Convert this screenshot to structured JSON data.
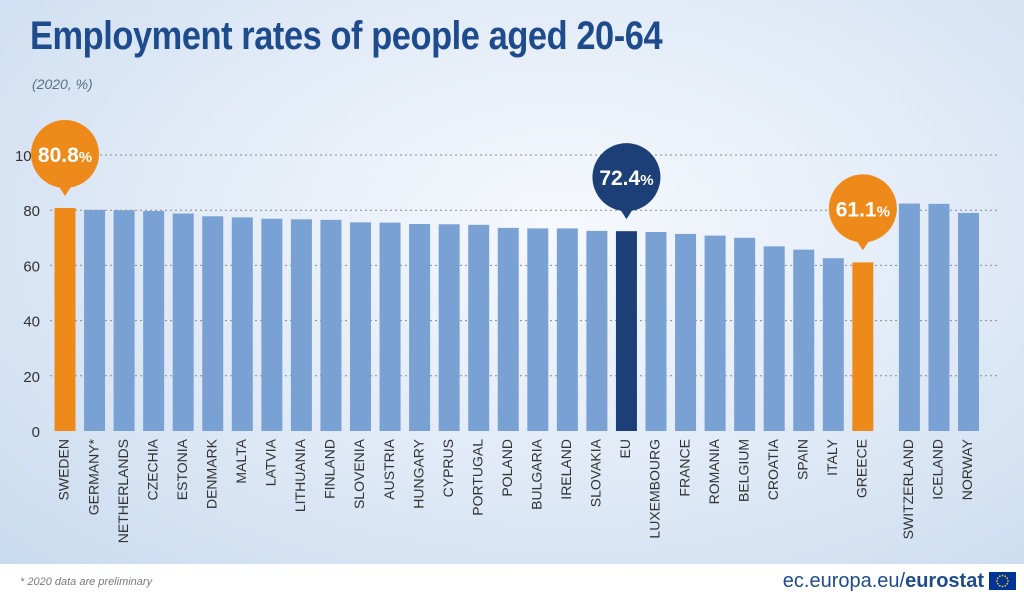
{
  "title": "Employment rates of people aged 20-64",
  "subtitle": "(2020, %)",
  "footnote": "* 2020 data are preliminary",
  "source": {
    "domain": "ec.europa.eu/",
    "brand": "eurostat"
  },
  "colors": {
    "bar_default": "#7aa1d3",
    "bar_highlight": "#ee8a1a",
    "bar_eu": "#1d3f77",
    "gridline": "#8a8a8a",
    "axis_text": "#333333"
  },
  "chart_data": {
    "type": "bar",
    "title": "Employment rates of people aged 20-64",
    "subtitle": "(2020, %)",
    "ylim": [
      0,
      100
    ],
    "yticks": [
      0,
      20,
      40,
      60,
      80,
      100
    ],
    "grid": true,
    "categories": [
      "SWEDEN",
      "GERMANY*",
      "NETHERLANDS",
      "CZECHIA",
      "ESTONIA",
      "DENMARK",
      "MALTA",
      "LATVIA",
      "LITHUANIA",
      "FINLAND",
      "SLOVENIA",
      "AUSTRIA",
      "HUNGARY",
      "CYPRUS",
      "PORTUGAL",
      "POLAND",
      "BULGARIA",
      "IRELAND",
      "SLOVAKIA",
      "EU",
      "LUXEMBOURG",
      "FRANCE",
      "ROMANIA",
      "BELGIUM",
      "CROATIA",
      "SPAIN",
      "ITALY",
      "GREECE",
      "SWITZERLAND",
      "ICELAND",
      "NORWAY"
    ],
    "values": [
      80.8,
      80.1,
      80.0,
      79.7,
      78.8,
      77.8,
      77.4,
      76.9,
      76.7,
      76.5,
      75.6,
      75.5,
      75.0,
      74.9,
      74.7,
      73.6,
      73.4,
      73.4,
      72.5,
      72.4,
      72.1,
      71.4,
      70.8,
      70.0,
      66.9,
      65.7,
      62.6,
      61.1,
      82.4,
      82.3,
      79.0
    ],
    "highlight": [
      "SWEDEN",
      "GREECE"
    ],
    "eu": "EU",
    "callouts": [
      {
        "category": "SWEDEN",
        "number": "80.8",
        "unit": "%"
      },
      {
        "category": "EU",
        "number": "72.4",
        "unit": "%"
      },
      {
        "category": "GREECE",
        "number": "61.1",
        "unit": "%"
      }
    ]
  }
}
